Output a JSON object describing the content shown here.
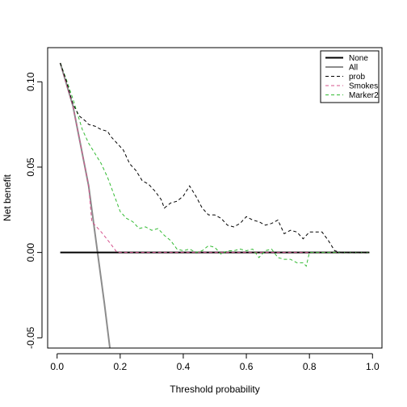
{
  "chart_data": {
    "type": "line",
    "xlabel": "Threshold probability",
    "ylabel": "Net benefit",
    "xlim": [
      -0.03,
      1.03
    ],
    "ylim": [
      -0.056,
      0.12
    ],
    "x_ticks": [
      "0.0",
      "0.2",
      "0.4",
      "0.6",
      "0.8",
      "1.0"
    ],
    "y_ticks": [
      "-0.05",
      "0.00",
      "0.05",
      "0.10"
    ],
    "grid": false,
    "legend_position": "top-right",
    "series": [
      {
        "name": "None",
        "color": "#000000",
        "dash": "solid",
        "width": 2,
        "points": [
          [
            0.01,
            0
          ],
          [
            0.99,
            0
          ]
        ]
      },
      {
        "name": "All",
        "color": "#8c8c8c",
        "dash": "solid",
        "width": 2,
        "points": [
          [
            0.01,
            0.111
          ],
          [
            0.05,
            0.086
          ],
          [
            0.1,
            0.039
          ],
          [
            0.15,
            -0.03
          ],
          [
            0.18,
            -0.075
          ]
        ]
      },
      {
        "name": "prob",
        "color": "#000000",
        "dash": "dashed",
        "width": 1,
        "points": [
          [
            0.01,
            0.111
          ],
          [
            0.03,
            0.1
          ],
          [
            0.05,
            0.087
          ],
          [
            0.07,
            0.08
          ],
          [
            0.09,
            0.077
          ],
          [
            0.1,
            0.075
          ],
          [
            0.12,
            0.074
          ],
          [
            0.14,
            0.072
          ],
          [
            0.16,
            0.071
          ],
          [
            0.17,
            0.068
          ],
          [
            0.19,
            0.064
          ],
          [
            0.21,
            0.06
          ],
          [
            0.23,
            0.052
          ],
          [
            0.25,
            0.048
          ],
          [
            0.27,
            0.042
          ],
          [
            0.29,
            0.04
          ],
          [
            0.31,
            0.036
          ],
          [
            0.33,
            0.031
          ],
          [
            0.34,
            0.026
          ],
          [
            0.36,
            0.029
          ],
          [
            0.38,
            0.03
          ],
          [
            0.4,
            0.033
          ],
          [
            0.42,
            0.039
          ],
          [
            0.44,
            0.033
          ],
          [
            0.46,
            0.026
          ],
          [
            0.48,
            0.022
          ],
          [
            0.5,
            0.022
          ],
          [
            0.52,
            0.02
          ],
          [
            0.54,
            0.016
          ],
          [
            0.56,
            0.015
          ],
          [
            0.58,
            0.017
          ],
          [
            0.6,
            0.021
          ],
          [
            0.62,
            0.019
          ],
          [
            0.64,
            0.018
          ],
          [
            0.66,
            0.016
          ],
          [
            0.68,
            0.017
          ],
          [
            0.7,
            0.019
          ],
          [
            0.72,
            0.011
          ],
          [
            0.74,
            0.013
          ],
          [
            0.76,
            0.012
          ],
          [
            0.78,
            0.008
          ],
          [
            0.8,
            0.012
          ],
          [
            0.82,
            0.012
          ],
          [
            0.84,
            0.012
          ],
          [
            0.86,
            0.007
          ],
          [
            0.88,
            0.001
          ],
          [
            0.9,
            0.0
          ],
          [
            0.99,
            0.0
          ]
        ]
      },
      {
        "name": "Smokes",
        "color": "#d6538e",
        "dash": "dashed",
        "width": 1,
        "points": [
          [
            0.01,
            0.111
          ],
          [
            0.05,
            0.086
          ],
          [
            0.1,
            0.039
          ],
          [
            0.11,
            0.018
          ],
          [
            0.14,
            0.012
          ],
          [
            0.17,
            0.005
          ],
          [
            0.19,
            0.0
          ],
          [
            0.99,
            0.0
          ]
        ]
      },
      {
        "name": "Marker2",
        "color": "#33bb33",
        "dash": "dashed",
        "width": 1,
        "points": [
          [
            0.01,
            0.111
          ],
          [
            0.03,
            0.101
          ],
          [
            0.05,
            0.09
          ],
          [
            0.07,
            0.078
          ],
          [
            0.08,
            0.072
          ],
          [
            0.1,
            0.064
          ],
          [
            0.12,
            0.058
          ],
          [
            0.14,
            0.052
          ],
          [
            0.16,
            0.044
          ],
          [
            0.18,
            0.034
          ],
          [
            0.2,
            0.024
          ],
          [
            0.22,
            0.02
          ],
          [
            0.24,
            0.018
          ],
          [
            0.26,
            0.014
          ],
          [
            0.28,
            0.015
          ],
          [
            0.3,
            0.013
          ],
          [
            0.32,
            0.014
          ],
          [
            0.34,
            0.01
          ],
          [
            0.36,
            0.007
          ],
          [
            0.38,
            0.002
          ],
          [
            0.4,
            0.001
          ],
          [
            0.42,
            0.002
          ],
          [
            0.44,
            0.0
          ],
          [
            0.46,
            0.001
          ],
          [
            0.48,
            0.004
          ],
          [
            0.5,
            0.003
          ],
          [
            0.52,
            -0.001
          ],
          [
            0.54,
            0.001
          ],
          [
            0.56,
            0.001
          ],
          [
            0.58,
            0.002
          ],
          [
            0.6,
            0.001
          ],
          [
            0.62,
            0.002
          ],
          [
            0.64,
            -0.003
          ],
          [
            0.66,
            0.001
          ],
          [
            0.68,
            0.002
          ],
          [
            0.7,
            -0.003
          ],
          [
            0.72,
            -0.004
          ],
          [
            0.74,
            -0.004
          ],
          [
            0.76,
            -0.006
          ],
          [
            0.78,
            -0.006
          ],
          [
            0.79,
            -0.008
          ],
          [
            0.8,
            0.0
          ],
          [
            0.99,
            0.0
          ]
        ]
      }
    ]
  }
}
